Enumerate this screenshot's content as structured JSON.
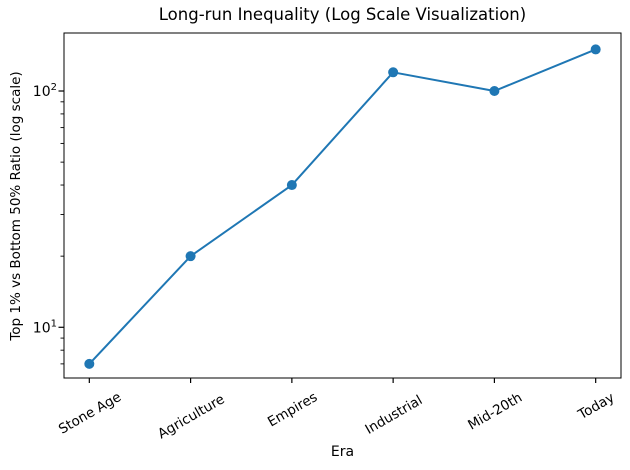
{
  "chart_data": {
    "type": "line",
    "title": "Long-run Inequality (Log Scale Visualization)",
    "xlabel": "Era",
    "ylabel": "Top 1% vs Bottom 50% Ratio (log scale)",
    "categories": [
      "Stone Age",
      "Agriculture",
      "Empires",
      "Industrial",
      "Mid-20th",
      "Today"
    ],
    "values": [
      7,
      20,
      40,
      120,
      100,
      150
    ],
    "yscale": "log",
    "ylim": [
      6.1,
      176
    ],
    "xlim": [
      -0.25,
      5.25
    ],
    "y_major_ticks": [
      10,
      100
    ],
    "y_minor_ticks": [
      7,
      8,
      9,
      20,
      30,
      40,
      50,
      60,
      70,
      80,
      90
    ],
    "x_tick_rotation": 30,
    "grid": false,
    "legend": false,
    "marker": "circle",
    "line_color": "#1f77b4",
    "axis_color": "#000000",
    "text_color": "#000000",
    "background_color": "#ffffff"
  }
}
